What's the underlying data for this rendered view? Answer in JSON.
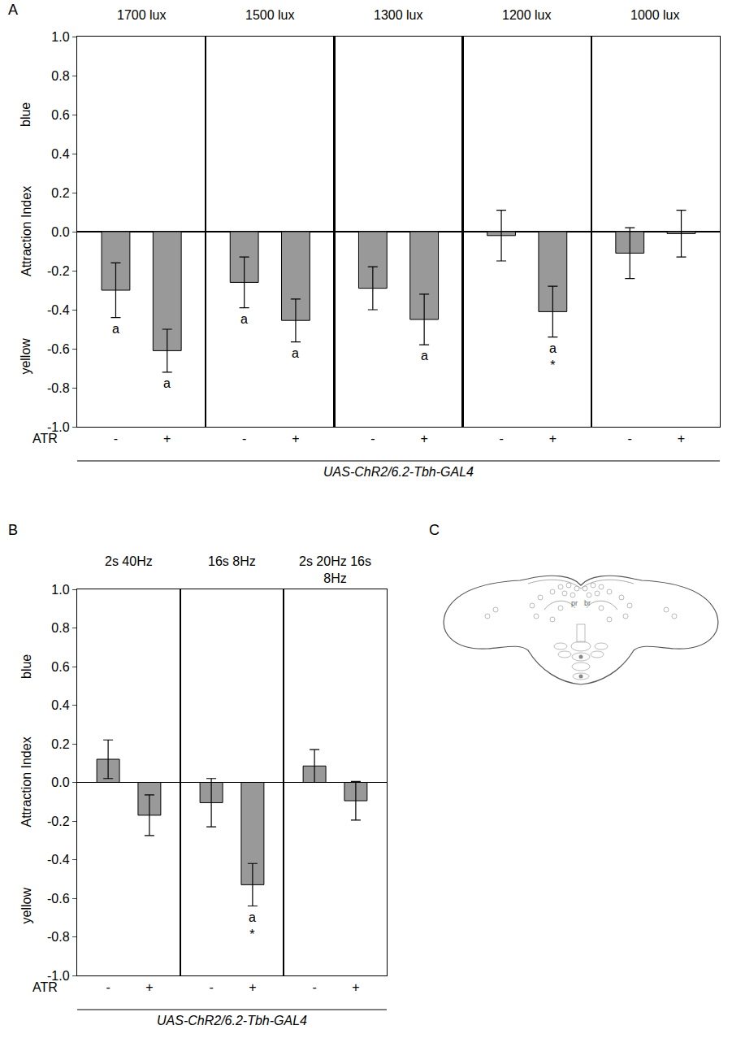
{
  "chart_data": [
    {
      "type": "bar",
      "panel_label": "A",
      "ylabel": "Attraction Index",
      "ylabel_top": "blue",
      "ylabel_bottom": "yellow",
      "xlabel": "UAS-ChR2/6.2-Tbh-GAL4",
      "row_label": "ATR",
      "color": "#999999",
      "grid": false,
      "ylim": [
        -1,
        1
      ],
      "yticks": [
        {
          "value": -1,
          "label": "-1.0"
        },
        -0.8,
        -0.6,
        -0.4,
        -0.2,
        {
          "value": 0,
          "label": "0.0"
        },
        0.2,
        0.4,
        0.6,
        0.8,
        {
          "value": 1,
          "label": "1.0"
        }
      ],
      "panels": [
        {
          "title": "1700 lux",
          "categories": [
            "-",
            "+"
          ],
          "values": [
            -0.3,
            -0.61
          ],
          "errors": [
            0.14,
            0.11
          ],
          "significance": [
            [
              "a"
            ],
            [
              "a"
            ]
          ]
        },
        {
          "title": "1500 lux",
          "categories": [
            "-",
            "+"
          ],
          "values": [
            -0.26,
            -0.455
          ],
          "errors": [
            0.13,
            0.11
          ],
          "significance": [
            [
              "a"
            ],
            [
              "a"
            ]
          ]
        },
        {
          "title": "1300 lux",
          "categories": [
            "-",
            "+"
          ],
          "values": [
            -0.29,
            -0.45
          ],
          "errors": [
            0.11,
            0.13
          ],
          "significance": [
            null,
            [
              "a"
            ]
          ]
        },
        {
          "title": "1200 lux",
          "categories": [
            "-",
            "+"
          ],
          "values": [
            -0.02,
            -0.41
          ],
          "errors": [
            0.13,
            0.13
          ],
          "significance": [
            null,
            [
              "a",
              "*"
            ]
          ]
        },
        {
          "title": "1000 lux",
          "categories": [
            "-",
            "+"
          ],
          "values": [
            -0.11,
            -0.01
          ],
          "errors": [
            0.13,
            0.12
          ],
          "significance": [
            null,
            null
          ]
        }
      ]
    },
    {
      "type": "bar",
      "panel_label": "B",
      "ylabel": "Attraction Index",
      "ylabel_top": "blue",
      "ylabel_bottom": "yellow",
      "xlabel": "UAS-ChR2/6.2-Tbh-GAL4",
      "row_label": "ATR",
      "color": "#999999",
      "grid": false,
      "ylim": [
        -1,
        1
      ],
      "yticks": [
        {
          "value": -1,
          "label": "-1.0"
        },
        -0.8,
        -0.6,
        -0.4,
        -0.2,
        {
          "value": 0,
          "label": "0.0"
        },
        0.2,
        0.4,
        0.6,
        0.8,
        {
          "value": 1,
          "label": "1.0"
        }
      ],
      "panels": [
        {
          "title": "2s 40Hz",
          "categories": [
            "-",
            "+"
          ],
          "values": [
            0.12,
            -0.17
          ],
          "errors": [
            0.1,
            0.105
          ],
          "significance": [
            null,
            null
          ]
        },
        {
          "title": "16s 8Hz",
          "categories": [
            "-",
            "+"
          ],
          "values": [
            -0.105,
            -0.53
          ],
          "errors": [
            0.125,
            0.11
          ],
          "significance": [
            null,
            [
              "a",
              "*"
            ]
          ]
        },
        {
          "title": "2s 20Hz 16s 8Hz",
          "categories": [
            "-",
            "+"
          ],
          "values": [
            0.085,
            -0.095
          ],
          "errors": [
            0.085,
            0.1
          ],
          "significance": [
            null,
            null
          ]
        }
      ]
    },
    {
      "type": "diagram",
      "panel_label": "C",
      "labels": [
        "pr",
        "br"
      ]
    }
  ]
}
